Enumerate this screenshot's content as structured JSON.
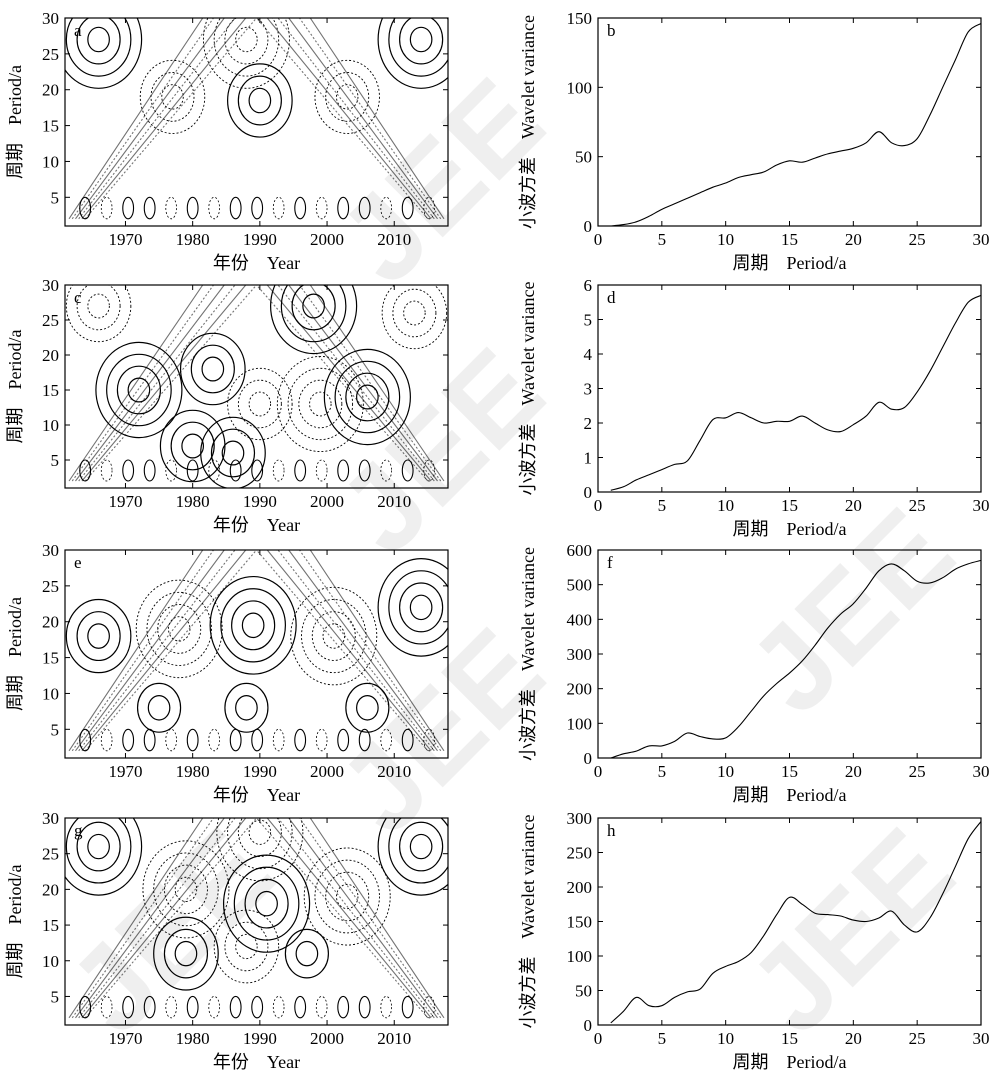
{
  "chart_data": [
    {
      "panel": "a",
      "type": "contour",
      "x_ticks": [
        1970,
        1980,
        1990,
        2000,
        2010
      ],
      "y_ticks": [
        5,
        10,
        15,
        20,
        25,
        30
      ],
      "xlim": [
        1961,
        2018
      ],
      "ylim": [
        1,
        30
      ],
      "xlabel_cn": "年份",
      "xlabel_en": "Year",
      "ylabel_cn": "周期",
      "ylabel_en": "Period/a",
      "centers": [
        {
          "x": 1990,
          "y": 18.5,
          "sign": "pos",
          "rings": 3
        },
        {
          "x": 1977,
          "y": 19,
          "sign": "neg",
          "rings": 3
        },
        {
          "x": 2003,
          "y": 19,
          "sign": "neg",
          "rings": 3
        },
        {
          "x": 1988,
          "y": 27,
          "sign": "neg",
          "rings": 4
        },
        {
          "x": 1966,
          "y": 27,
          "sign": "pos",
          "rings": 4
        },
        {
          "x": 2014,
          "y": 27,
          "sign": "pos",
          "rings": 4
        }
      ]
    },
    {
      "panel": "b",
      "type": "line",
      "x": [
        0,
        1,
        2,
        3,
        4,
        5,
        6,
        7,
        8,
        9,
        10,
        11,
        12,
        13,
        14,
        15,
        16,
        17,
        18,
        19,
        20,
        21,
        22,
        23,
        24,
        25,
        26,
        27,
        28,
        29,
        30
      ],
      "values": [
        null,
        0,
        1,
        3,
        7,
        12,
        16,
        20,
        24,
        28,
        31,
        35,
        37,
        39,
        44,
        47,
        46,
        49,
        52,
        54,
        56,
        60,
        68,
        60,
        58,
        63,
        80,
        100,
        120,
        140,
        146
      ],
      "xlim": [
        0,
        30
      ],
      "ylim": [
        0,
        150
      ],
      "x_ticks": [
        0,
        5,
        10,
        15,
        20,
        25,
        30
      ],
      "y_ticks": [
        0,
        50,
        100,
        150
      ],
      "xlabel_cn": "周期",
      "xlabel_en": "Period/a",
      "ylabel_cn": "小波方差",
      "ylabel_en": "Wavelet variance"
    },
    {
      "panel": "c",
      "type": "contour",
      "x_ticks": [
        1970,
        1980,
        1990,
        2000,
        2010
      ],
      "y_ticks": [
        5,
        10,
        15,
        20,
        25,
        30
      ],
      "xlim": [
        1961,
        2018
      ],
      "ylim": [
        1,
        30
      ],
      "xlabel_cn": "年份",
      "xlabel_en": "Year",
      "ylabel_cn": "周期",
      "ylabel_en": "Period/a",
      "centers": [
        {
          "x": 1972,
          "y": 15,
          "sign": "pos",
          "rings": 4
        },
        {
          "x": 1983,
          "y": 18,
          "sign": "pos",
          "rings": 3
        },
        {
          "x": 1990,
          "y": 13,
          "sign": "neg",
          "rings": 3
        },
        {
          "x": 1999,
          "y": 13,
          "sign": "neg",
          "rings": 4
        },
        {
          "x": 2006,
          "y": 14,
          "sign": "pos",
          "rings": 4
        },
        {
          "x": 1980,
          "y": 7,
          "sign": "pos",
          "rings": 3
        },
        {
          "x": 1986,
          "y": 6,
          "sign": "pos",
          "rings": 3
        },
        {
          "x": 1966,
          "y": 27,
          "sign": "neg",
          "rings": 3
        },
        {
          "x": 1998,
          "y": 27,
          "sign": "pos",
          "rings": 4
        },
        {
          "x": 2013,
          "y": 26,
          "sign": "neg",
          "rings": 3
        }
      ]
    },
    {
      "panel": "d",
      "type": "line",
      "x": [
        0,
        1,
        2,
        3,
        4,
        5,
        6,
        7,
        8,
        9,
        10,
        11,
        12,
        13,
        14,
        15,
        16,
        17,
        18,
        19,
        20,
        21,
        22,
        23,
        24,
        25,
        26,
        27,
        28,
        29,
        30
      ],
      "values": [
        null,
        0.05,
        0.15,
        0.35,
        0.5,
        0.65,
        0.8,
        0.9,
        1.5,
        2.1,
        2.15,
        2.3,
        2.15,
        2.0,
        2.05,
        2.05,
        2.2,
        2.0,
        1.8,
        1.75,
        1.95,
        2.2,
        2.6,
        2.4,
        2.45,
        2.9,
        3.5,
        4.2,
        4.9,
        5.5,
        5.7
      ],
      "xlim": [
        0,
        30
      ],
      "ylim": [
        0,
        6
      ],
      "x_ticks": [
        0,
        5,
        10,
        15,
        20,
        25,
        30
      ],
      "y_ticks": [
        0,
        1,
        2,
        3,
        4,
        5,
        6
      ],
      "xlabel_cn": "周期",
      "xlabel_en": "Period/a",
      "ylabel_cn": "小波方差",
      "ylabel_en": "Wavelet variance"
    },
    {
      "panel": "e",
      "type": "contour",
      "x_ticks": [
        1970,
        1980,
        1990,
        2000,
        2010
      ],
      "y_ticks": [
        5,
        10,
        15,
        20,
        25,
        30
      ],
      "xlim": [
        1961,
        2018
      ],
      "ylim": [
        1,
        30
      ],
      "xlabel_cn": "年份",
      "xlabel_en": "Year",
      "ylabel_cn": "周期",
      "ylabel_en": "Period/a",
      "centers": [
        {
          "x": 1966,
          "y": 18,
          "sign": "pos",
          "rings": 3
        },
        {
          "x": 1978,
          "y": 19,
          "sign": "neg",
          "rings": 4
        },
        {
          "x": 1989,
          "y": 19.5,
          "sign": "pos",
          "rings": 4
        },
        {
          "x": 2001,
          "y": 18,
          "sign": "neg",
          "rings": 4
        },
        {
          "x": 2014,
          "y": 22,
          "sign": "pos",
          "rings": 4
        },
        {
          "x": 1975,
          "y": 8,
          "sign": "pos",
          "rings": 2
        },
        {
          "x": 1988,
          "y": 8,
          "sign": "pos",
          "rings": 2
        },
        {
          "x": 2006,
          "y": 8,
          "sign": "pos",
          "rings": 2
        }
      ]
    },
    {
      "panel": "f",
      "type": "line",
      "x": [
        0,
        1,
        2,
        3,
        4,
        5,
        6,
        7,
        8,
        9,
        10,
        11,
        12,
        13,
        14,
        15,
        16,
        17,
        18,
        19,
        20,
        21,
        22,
        23,
        24,
        25,
        26,
        27,
        28,
        29,
        30
      ],
      "values": [
        null,
        0,
        12,
        20,
        35,
        35,
        48,
        72,
        62,
        55,
        58,
        90,
        135,
        180,
        215,
        245,
        280,
        325,
        375,
        415,
        445,
        490,
        540,
        560,
        540,
        510,
        505,
        520,
        545,
        560,
        570
      ],
      "xlim": [
        0,
        30
      ],
      "ylim": [
        0,
        600
      ],
      "x_ticks": [
        0,
        5,
        10,
        15,
        20,
        25,
        30
      ],
      "y_ticks": [
        0,
        100,
        200,
        300,
        400,
        500,
        600
      ],
      "xlabel_cn": "周期",
      "xlabel_en": "Period/a",
      "ylabel_cn": "小波方差",
      "ylabel_en": "Wavelet variance"
    },
    {
      "panel": "g",
      "type": "contour",
      "x_ticks": [
        1970,
        1980,
        1990,
        2000,
        2010
      ],
      "y_ticks": [
        5,
        10,
        15,
        20,
        25,
        30
      ],
      "xlim": [
        1961,
        2018
      ],
      "ylim": [
        1,
        30
      ],
      "xlabel_cn": "年份",
      "xlabel_en": "Year",
      "ylabel_cn": "周期",
      "ylabel_en": "Period/a",
      "centers": [
        {
          "x": 1991,
          "y": 18,
          "sign": "pos",
          "rings": 4
        },
        {
          "x": 1979,
          "y": 20,
          "sign": "neg",
          "rings": 4
        },
        {
          "x": 2003,
          "y": 19,
          "sign": "neg",
          "rings": 4
        },
        {
          "x": 1979,
          "y": 11,
          "sign": "pos",
          "rings": 3
        },
        {
          "x": 1988,
          "y": 12,
          "sign": "neg",
          "rings": 3
        },
        {
          "x": 1997,
          "y": 11,
          "sign": "pos",
          "rings": 2
        },
        {
          "x": 1966,
          "y": 26,
          "sign": "pos",
          "rings": 4
        },
        {
          "x": 1990,
          "y": 28,
          "sign": "neg",
          "rings": 4
        },
        {
          "x": 2014,
          "y": 26,
          "sign": "pos",
          "rings": 4
        }
      ]
    },
    {
      "panel": "h",
      "type": "line",
      "x": [
        0,
        1,
        2,
        3,
        4,
        5,
        6,
        7,
        8,
        9,
        10,
        11,
        12,
        13,
        14,
        15,
        16,
        17,
        18,
        19,
        20,
        21,
        22,
        23,
        24,
        25,
        26,
        27,
        28,
        29,
        30
      ],
      "values": [
        null,
        3,
        20,
        40,
        28,
        28,
        40,
        48,
        52,
        75,
        85,
        92,
        105,
        130,
        160,
        185,
        175,
        162,
        160,
        158,
        152,
        150,
        155,
        165,
        145,
        135,
        155,
        190,
        230,
        270,
        295
      ],
      "xlim": [
        0,
        30
      ],
      "ylim": [
        0,
        300
      ],
      "x_ticks": [
        0,
        5,
        10,
        15,
        20,
        25,
        30
      ],
      "y_ticks": [
        0,
        50,
        100,
        150,
        200,
        250,
        300
      ],
      "xlabel_cn": "周期",
      "xlabel_en": "Period/a",
      "ylabel_cn": "小波方差",
      "ylabel_en": "Wavelet variance"
    }
  ],
  "watermark": "JEE"
}
